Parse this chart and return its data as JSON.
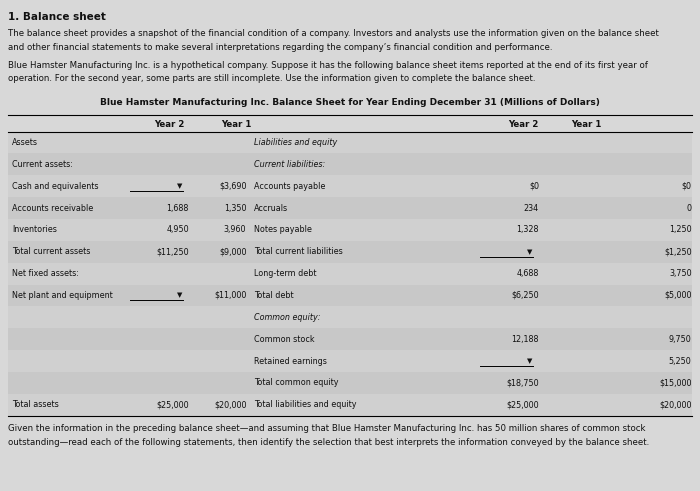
{
  "title": "1. Balance sheet",
  "para1": "The balance sheet provides a snapshot of the financial condition of a company. Investors and analysts use the information given on the balance sheet\nand other financial statements to make several interpretations regarding the company’s financial condition and performance.",
  "para2": "Blue Hamster Manufacturing Inc. is a hypothetical company. Suppose it has the following balance sheet items reported at the end of its first year of\noperation. For the second year, some parts are still incomplete. Use the information given to complete the balance sheet.",
  "table_title": "Blue Hamster Manufacturing Inc. Balance Sheet for Year Ending December 31 (Millions of Dollars)",
  "rows": [
    [
      "Assets",
      "",
      "",
      "Liabilities and equity",
      "",
      ""
    ],
    [
      "Current assets:",
      "",
      "",
      "Current liabilities:",
      "",
      ""
    ],
    [
      "Cash and equivalents",
      "▼",
      "$3,690",
      "Accounts payable",
      "$0",
      "$0"
    ],
    [
      "Accounts receivable",
      "1,688",
      "1,350",
      "Accruals",
      "234",
      "0"
    ],
    [
      "Inventories",
      "4,950",
      "3,960",
      "Notes payable",
      "1,328",
      "1,250"
    ],
    [
      "Total current assets",
      "$11,250",
      "$9,000",
      "Total current liabilities",
      "▼",
      "$1,250"
    ],
    [
      "Net fixed assets:",
      "",
      "",
      "Long-term debt",
      "4,688",
      "3,750"
    ],
    [
      "Net plant and equipment",
      "▼",
      "$11,000",
      "Total debt",
      "$6,250",
      "$5,000"
    ],
    [
      "",
      "",
      "",
      "Common equity:",
      "",
      ""
    ],
    [
      "",
      "",
      "",
      "Common stock",
      "12,188",
      "9,750"
    ],
    [
      "",
      "",
      "",
      "Retained earnings",
      "▼",
      "5,250"
    ],
    [
      "",
      "",
      "",
      "Total common equity",
      "$18,750",
      "$15,000"
    ],
    [
      "Total assets",
      "$25,000",
      "$20,000",
      "Total liabilities and equity",
      "$25,000",
      "$20,000"
    ]
  ],
  "footer": "Given the information in the preceding balance sheet—and assuming that Blue Hamster Manufacturing Inc. has 50 million shares of common stock\noutstanding—read each of the following statements, then identify the selection that best interprets the information conveyed by the balance sheet.",
  "bg_color": "#d8d8d8",
  "row_even": "#d0d0d0",
  "row_odd": "#c8c8c8",
  "text_color": "#111111",
  "title_fontsize": 7.5,
  "para_fontsize": 6.2,
  "table_title_fontsize": 6.5,
  "row_fontsize": 5.8,
  "header_fontsize": 6.2
}
